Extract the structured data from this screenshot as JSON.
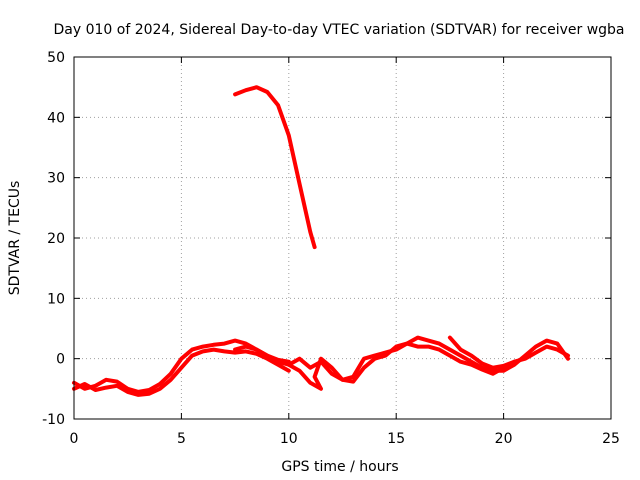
{
  "chart_data": {
    "type": "line",
    "title": "Day 010 of 2024, Sidereal Day-to-day VTEC variation (SDTVAR) for receiver wgba",
    "xlabel": "GPS time / hours",
    "ylabel": "SDTVAR / TECUs",
    "xlim": [
      0,
      25
    ],
    "ylim": [
      -10,
      50
    ],
    "xticks": [
      0,
      5,
      10,
      15,
      20,
      25
    ],
    "yticks": [
      -10,
      0,
      10,
      20,
      30,
      40,
      50
    ],
    "grid": true,
    "series_color": "#ff0000",
    "series": [
      {
        "name": "sat-a",
        "points": [
          [
            0,
            -4
          ],
          [
            0.5,
            -5
          ],
          [
            1,
            -4.5
          ],
          [
            1.5,
            -3.5
          ],
          [
            2,
            -3.8
          ],
          [
            2.5,
            -5
          ],
          [
            3,
            -5.5
          ],
          [
            3.5,
            -5.2
          ],
          [
            4,
            -4.2
          ],
          [
            4.5,
            -2.5
          ],
          [
            5,
            0
          ],
          [
            5.5,
            1.5
          ],
          [
            6,
            2
          ],
          [
            6.5,
            2.3
          ],
          [
            7,
            2.5
          ],
          [
            7.5,
            3
          ],
          [
            8,
            2.5
          ],
          [
            8.5,
            1.5
          ],
          [
            9,
            0.5
          ],
          [
            9.5,
            -0.2
          ],
          [
            10,
            -0.5
          ]
        ]
      },
      {
        "name": "sat-b",
        "points": [
          [
            0,
            -5
          ],
          [
            0.5,
            -4.2
          ],
          [
            1,
            -5.2
          ],
          [
            1.5,
            -4.8
          ],
          [
            2,
            -4.5
          ],
          [
            2.5,
            -5.5
          ],
          [
            3,
            -6
          ],
          [
            3.5,
            -5.8
          ],
          [
            4,
            -5
          ],
          [
            4.5,
            -3.5
          ],
          [
            5,
            -1.5
          ],
          [
            5.5,
            0.5
          ],
          [
            6,
            1.2
          ],
          [
            6.5,
            1.5
          ],
          [
            7,
            1.2
          ],
          [
            7.5,
            1
          ],
          [
            8,
            1.2
          ],
          [
            8.5,
            0.8
          ],
          [
            9,
            0
          ],
          [
            9.5,
            -1
          ],
          [
            10,
            -2
          ]
        ]
      },
      {
        "name": "sat-c",
        "points": [
          [
            7.5,
            1.5
          ],
          [
            8,
            2
          ],
          [
            8.5,
            1.5
          ],
          [
            9,
            0.5
          ],
          [
            9.5,
            -0.5
          ],
          [
            10,
            -1
          ],
          [
            10.5,
            0
          ],
          [
            11,
            -1.5
          ],
          [
            11.5,
            -0.5
          ],
          [
            12,
            -2.5
          ],
          [
            12.5,
            -3.5
          ],
          [
            13,
            -3
          ],
          [
            13.5,
            0
          ],
          [
            14,
            0.5
          ],
          [
            14.5,
            1
          ],
          [
            15,
            1.5
          ],
          [
            15.5,
            2.5
          ],
          [
            16,
            3.5
          ],
          [
            16.5,
            3
          ],
          [
            17,
            2.5
          ],
          [
            17.5,
            1.5
          ],
          [
            18,
            0.5
          ],
          [
            18.5,
            -0.5
          ],
          [
            19,
            -1.5
          ],
          [
            19.5,
            -2
          ],
          [
            20,
            -2
          ],
          [
            20.5,
            -1
          ],
          [
            21,
            0.5
          ],
          [
            21.5,
            2
          ],
          [
            22,
            3
          ],
          [
            22.5,
            2.5
          ],
          [
            23,
            0
          ]
        ]
      },
      {
        "name": "sat-d",
        "points": [
          [
            10,
            -1
          ],
          [
            10.5,
            -2
          ],
          [
            11,
            -4
          ],
          [
            11.5,
            -5
          ],
          [
            11.2,
            -3
          ],
          [
            11.5,
            0
          ],
          [
            12,
            -1.5
          ],
          [
            12.5,
            -3.5
          ],
          [
            13,
            -3.8
          ],
          [
            13.5,
            -1.5
          ],
          [
            14,
            0
          ],
          [
            14.5,
            0.5
          ],
          [
            15,
            2
          ],
          [
            15.5,
            2.5
          ],
          [
            16,
            2
          ],
          [
            16.5,
            2
          ],
          [
            17,
            1.5
          ],
          [
            17.5,
            0.5
          ],
          [
            18,
            -0.5
          ],
          [
            18.5,
            -1
          ],
          [
            19,
            -1.8
          ],
          [
            19.5,
            -2.5
          ],
          [
            20,
            -1.5
          ],
          [
            20.5,
            -0.5
          ],
          [
            21,
            0
          ],
          [
            21.5,
            1
          ],
          [
            22,
            2
          ],
          [
            22.5,
            1.5
          ],
          [
            23,
            0.5
          ]
        ]
      },
      {
        "name": "sat-e",
        "points": [
          [
            17.5,
            3.5
          ],
          [
            18,
            1.5
          ],
          [
            18.5,
            0.5
          ],
          [
            19,
            -0.8
          ],
          [
            19.5,
            -1.5
          ],
          [
            20,
            -1.2
          ],
          [
            20.5,
            -0.5
          ]
        ]
      },
      {
        "name": "sat-f",
        "points": [
          [
            7.5,
            43.8
          ],
          [
            8,
            44.5
          ],
          [
            8.5,
            45
          ],
          [
            9,
            44.2
          ],
          [
            9.5,
            42
          ],
          [
            10,
            37
          ],
          [
            10.5,
            29
          ],
          [
            11,
            21
          ],
          [
            11.2,
            18.5
          ]
        ]
      }
    ]
  }
}
